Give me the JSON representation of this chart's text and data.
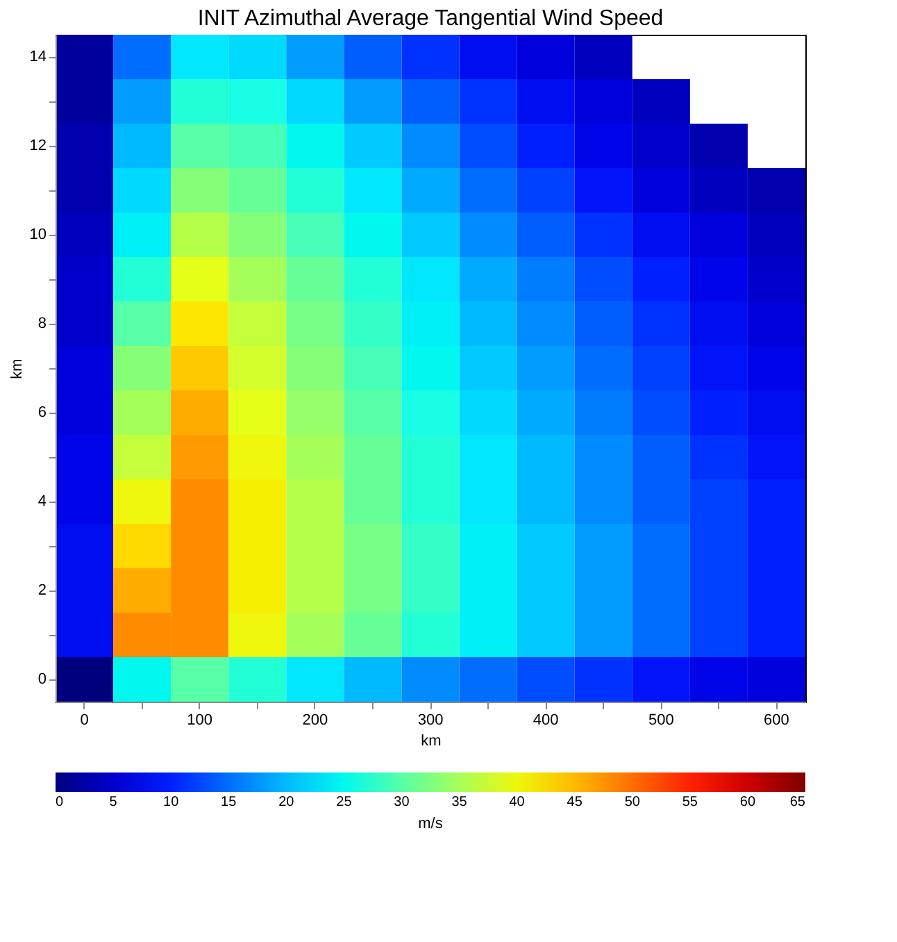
{
  "chart_data": {
    "type": "heatmap",
    "title": "INIT Azimuthal Average Tangential Wind Speed",
    "xlabel": "km",
    "ylabel": "km",
    "clabel": "m/s",
    "categories": [
      "0",
      null,
      "100",
      null,
      "200",
      null,
      "300",
      null,
      "400",
      null,
      "500",
      null,
      "600"
    ],
    "y_categories": [
      "14",
      null,
      "12",
      null,
      "10",
      null,
      "8",
      null,
      "6",
      null,
      "4",
      null,
      "2",
      null,
      "0"
    ],
    "cells": [
      [
        2,
        15,
        23,
        22,
        18,
        14,
        11,
        8,
        6,
        4,
        null,
        null,
        null
      ],
      [
        2,
        18,
        27,
        26,
        22,
        18,
        14,
        11,
        8,
        6,
        4,
        null,
        null
      ],
      [
        3,
        20,
        30,
        29,
        25,
        21,
        17,
        13,
        10,
        7,
        5,
        3,
        null
      ],
      [
        3,
        22,
        33,
        31,
        27,
        23,
        19,
        15,
        12,
        9,
        6,
        4,
        3
      ],
      [
        4,
        24,
        36,
        33,
        29,
        25,
        21,
        17,
        14,
        11,
        8,
        6,
        4
      ],
      [
        5,
        27,
        39,
        35,
        31,
        27,
        23,
        19,
        16,
        13,
        10,
        7,
        5
      ],
      [
        5,
        30,
        42,
        37,
        32,
        28,
        24,
        20,
        17,
        14,
        11,
        8,
        6
      ],
      [
        6,
        33,
        44,
        38,
        33,
        29,
        25,
        21,
        18,
        15,
        12,
        9,
        7
      ],
      [
        6,
        35,
        46,
        39,
        34,
        30,
        26,
        22,
        19,
        16,
        13,
        10,
        8
      ],
      [
        7,
        37,
        47,
        40,
        35,
        31,
        27,
        23,
        20,
        17,
        14,
        11,
        9
      ],
      [
        7,
        40,
        48,
        41,
        36,
        31,
        27,
        23,
        20,
        17,
        14,
        12,
        10
      ],
      [
        8,
        43,
        48,
        41,
        36,
        32,
        28,
        24,
        21,
        18,
        15,
        12,
        10
      ],
      [
        8,
        46,
        48,
        41,
        36,
        32,
        28,
        24,
        21,
        18,
        15,
        12,
        10
      ],
      [
        8,
        48,
        48,
        40,
        35,
        31,
        27,
        24,
        21,
        18,
        15,
        12,
        10
      ],
      [
        0,
        25,
        30,
        27,
        23,
        20,
        17,
        15,
        13,
        11,
        9,
        7,
        6
      ]
    ],
    "clim": [
      0,
      65
    ],
    "cticks": [
      0,
      5,
      10,
      15,
      20,
      25,
      30,
      35,
      40,
      45,
      50,
      55,
      60,
      65
    ]
  }
}
